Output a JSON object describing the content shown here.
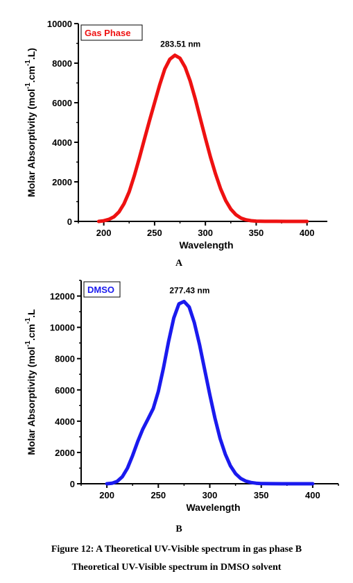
{
  "chart_data": [
    {
      "type": "line",
      "panel": "A",
      "legend_text": "Gas Phase",
      "legend_placement": "top-left",
      "peak_label": "283.51 nm",
      "xlabel": "Wavelength",
      "ylabel": "Molar Absorptivity (mol",
      "ylabel_sup": "-1",
      "ylabel_mid": ".cm",
      "ylabel_sup2": "-1",
      "ylabel_end": ".L)",
      "xlim": [
        175,
        420
      ],
      "ylim": [
        0,
        10000
      ],
      "xticks": [
        "200",
        "250",
        "300",
        "350",
        "400"
      ],
      "yticks": [
        "0",
        "2000",
        "4000",
        "6000",
        "8000",
        "10000"
      ],
      "series": [
        {
          "color": "#ee1111",
          "x": [
            195,
            200,
            205,
            210,
            215,
            220,
            225,
            230,
            235,
            240,
            245,
            250,
            255,
            260,
            265,
            270,
            275,
            280,
            285,
            290,
            295,
            300,
            305,
            310,
            315,
            320,
            325,
            330,
            335,
            340,
            345,
            350,
            360,
            370,
            380,
            390,
            400
          ],
          "y": [
            0,
            30,
            100,
            230,
            480,
            900,
            1500,
            2300,
            3200,
            4150,
            5100,
            6000,
            6900,
            7700,
            8200,
            8400,
            8250,
            7800,
            7100,
            6200,
            5200,
            4200,
            3250,
            2400,
            1650,
            1050,
            620,
            340,
            170,
            80,
            35,
            15,
            5,
            2,
            0,
            0,
            0
          ]
        }
      ]
    },
    {
      "type": "line",
      "panel": "B",
      "legend_text": "DMSO",
      "legend_placement": "top-left",
      "peak_label": "277.43 nm",
      "xlabel": "Wavelength",
      "ylabel": "Molar Absorptivity (mol",
      "ylabel_sup": "-1",
      "ylabel_mid": ".cm",
      "ylabel_sup2": "-1",
      "ylabel_end": ".L",
      "xlim": [
        175,
        425
      ],
      "ylim": [
        0,
        13000
      ],
      "xticks": [
        "200",
        "250",
        "300",
        "350",
        "400"
      ],
      "yticks": [
        "0",
        "2000",
        "4000",
        "6000",
        "8000",
        "10000",
        "12000"
      ],
      "series": [
        {
          "color": "#1a1aee",
          "x": [
            200,
            205,
            210,
            215,
            220,
            225,
            230,
            235,
            240,
            245,
            250,
            255,
            260,
            265,
            270,
            275,
            280,
            285,
            290,
            295,
            300,
            305,
            310,
            315,
            320,
            325,
            330,
            335,
            340,
            345,
            350,
            360,
            370,
            380,
            390,
            400
          ],
          "y": [
            0,
            30,
            150,
            450,
            1000,
            1800,
            2700,
            3500,
            4150,
            4800,
            5900,
            7400,
            9100,
            10600,
            11500,
            11650,
            11300,
            10300,
            8900,
            7300,
            5700,
            4200,
            2900,
            1900,
            1150,
            650,
            340,
            170,
            80,
            35,
            15,
            5,
            2,
            0,
            0,
            0
          ]
        }
      ]
    }
  ],
  "caption": {
    "line1": "Figure 12: A Theoretical UV-Visible spectrum in gas phase B",
    "line2": "Theoretical UV-Visible spectrum in DMSO solvent"
  }
}
